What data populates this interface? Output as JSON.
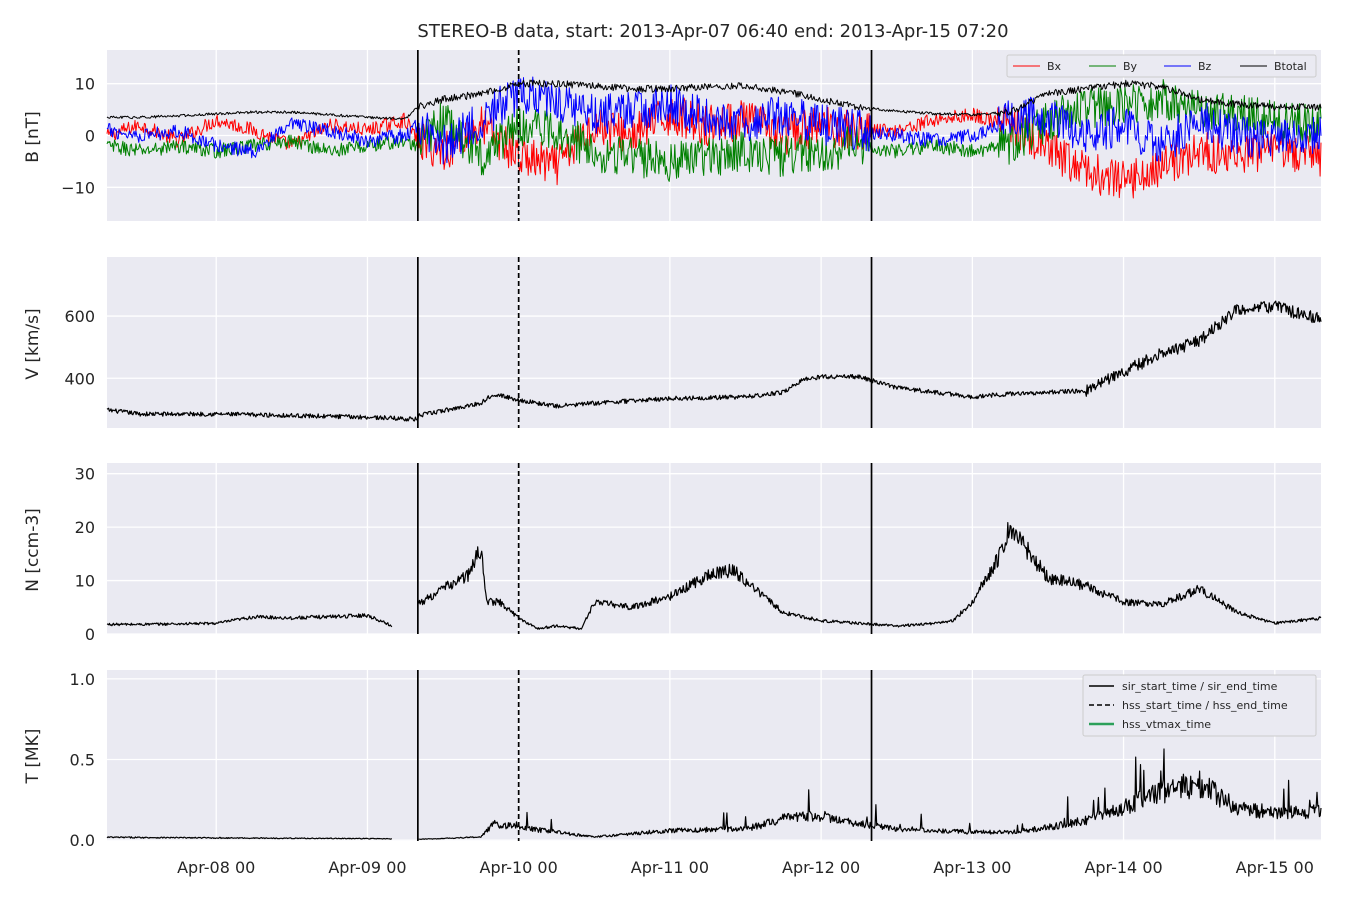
{
  "title": "STEREO-B data, start: 2013-Apr-07 06:40  end: 2013-Apr-15 07:20",
  "colors": {
    "plot_bg": "#EAEAF2",
    "grid": "#FFFFFF",
    "bx": "#FF0000",
    "by": "#008000",
    "bz": "#0000FF",
    "btotal": "#000000",
    "hss_vtmax": "#2CA05A"
  },
  "chart_data": [
    {
      "type": "line",
      "ylabel": "B [nT]",
      "xlim": [
        "2013-04-07 06:40",
        "2013-04-15 07:20"
      ],
      "ylim": [
        -16.5,
        16.5
      ],
      "yticks": [
        -10,
        0,
        10
      ],
      "ytick_labels": [
        "−10",
        "0",
        "10"
      ],
      "grid": true,
      "legend": "top-right",
      "series": [
        {
          "name": "Bx",
          "color": "#FF0000",
          "x": [
            "04-07 06:40",
            "04-07 12:00",
            "04-07 18:00",
            "04-08 00:00",
            "04-08 06:00",
            "04-08 12:00",
            "04-08 18:00",
            "04-09 00:00",
            "04-09 06:00",
            "04-09 08:00",
            "04-09 12:00",
            "04-09 18:00",
            "04-10 00:00",
            "04-10 06:00",
            "04-10 12:00",
            "04-10 18:00",
            "04-11 00:00",
            "04-11 06:00",
            "04-11 12:00",
            "04-11 18:00",
            "04-12 00:00",
            "04-12 06:00",
            "04-12 12:00",
            "04-12 18:00",
            "04-13 00:00",
            "04-13 06:00",
            "04-13 12:00",
            "04-13 18:00",
            "04-14 00:00",
            "04-14 06:00",
            "04-14 12:00",
            "04-14 18:00",
            "04-15 00:00",
            "04-15 07:20"
          ],
          "y": [
            0,
            2,
            -1,
            3,
            1,
            -2,
            2,
            1,
            3,
            -1,
            -3,
            2,
            -4,
            -6,
            2,
            0,
            4,
            2,
            3,
            0,
            2,
            1,
            1,
            3,
            4,
            2,
            -3,
            -7,
            -9,
            -6,
            -3,
            -4,
            -3,
            -4
          ]
        },
        {
          "name": "By",
          "color": "#008000",
          "x": [
            "04-07 06:40",
            "04-07 12:00",
            "04-07 18:00",
            "04-08 00:00",
            "04-08 06:00",
            "04-08 12:00",
            "04-08 18:00",
            "04-09 00:00",
            "04-09 06:00",
            "04-09 08:00",
            "04-09 12:00",
            "04-09 18:00",
            "04-10 00:00",
            "04-10 06:00",
            "04-10 12:00",
            "04-10 18:00",
            "04-11 00:00",
            "04-11 06:00",
            "04-11 12:00",
            "04-11 18:00",
            "04-12 00:00",
            "04-12 06:00",
            "04-12 12:00",
            "04-12 18:00",
            "04-13 00:00",
            "04-13 06:00",
            "04-13 12:00",
            "04-13 18:00",
            "04-14 00:00",
            "04-14 06:00",
            "04-14 12:00",
            "04-14 18:00",
            "04-15 00:00",
            "04-15 07:20"
          ],
          "y": [
            -2,
            -3,
            -2,
            -3,
            -2,
            -1,
            -3,
            -2,
            -1,
            -2,
            3,
            -4,
            2,
            1,
            -3,
            -4,
            -5,
            -4,
            -3,
            -4,
            -3,
            -2,
            -3,
            -2,
            -3,
            -2,
            3,
            5,
            6,
            7,
            5,
            4,
            3,
            2
          ]
        },
        {
          "name": "Bz",
          "color": "#0000FF",
          "x": [
            "04-07 06:40",
            "04-07 12:00",
            "04-07 18:00",
            "04-08 00:00",
            "04-08 06:00",
            "04-08 12:00",
            "04-08 18:00",
            "04-09 00:00",
            "04-09 06:00",
            "04-09 08:00",
            "04-09 12:00",
            "04-09 18:00",
            "04-10 00:00",
            "04-10 06:00",
            "04-10 12:00",
            "04-10 18:00",
            "04-11 00:00",
            "04-11 06:00",
            "04-11 12:00",
            "04-11 18:00",
            "04-12 00:00",
            "04-12 06:00",
            "04-12 12:00",
            "04-12 18:00",
            "04-13 00:00",
            "04-13 06:00",
            "04-13 12:00",
            "04-13 18:00",
            "04-14 00:00",
            "04-14 06:00",
            "04-14 12:00",
            "04-14 18:00",
            "04-15 00:00",
            "04-15 07:20"
          ],
          "y": [
            1,
            0,
            1,
            -2,
            -3,
            2,
            1,
            -1,
            0,
            2,
            -2,
            3,
            8,
            7,
            4,
            5,
            6,
            3,
            2,
            4,
            2,
            1,
            0,
            -1,
            0,
            3,
            4,
            0,
            2,
            -2,
            3,
            0,
            -1,
            0
          ]
        },
        {
          "name": "Btotal",
          "color": "#000000",
          "x": [
            "04-07 06:40",
            "04-07 12:00",
            "04-07 18:00",
            "04-08 00:00",
            "04-08 06:00",
            "04-08 12:00",
            "04-08 18:00",
            "04-09 00:00",
            "04-09 06:00",
            "04-09 08:00",
            "04-09 12:00",
            "04-09 18:00",
            "04-10 00:00",
            "04-10 06:00",
            "04-10 12:00",
            "04-10 18:00",
            "04-11 00:00",
            "04-11 06:00",
            "04-11 12:00",
            "04-11 18:00",
            "04-12 00:00",
            "04-12 06:00",
            "04-12 12:00",
            "04-12 18:00",
            "04-13 00:00",
            "04-13 06:00",
            "04-13 12:00",
            "04-13 18:00",
            "04-14 00:00",
            "04-14 06:00",
            "04-14 12:00",
            "04-14 18:00",
            "04-15 00:00",
            "04-15 07:20"
          ],
          "y": [
            3.5,
            3.5,
            3.8,
            4.2,
            4.5,
            4.5,
            4.0,
            3.5,
            3.2,
            5.5,
            7,
            8,
            10,
            10,
            9.5,
            9,
            9,
            9.5,
            9.5,
            8.5,
            7,
            5.5,
            4.7,
            4.2,
            4,
            4.5,
            8,
            9,
            10,
            9.5,
            7,
            6,
            5.5,
            5.5
          ]
        }
      ]
    },
    {
      "type": "line",
      "ylabel": "V [km/s]",
      "xlim": [
        "2013-04-07 06:40",
        "2013-04-15 07:20"
      ],
      "ylim": [
        240,
        790
      ],
      "yticks": [
        400,
        600
      ],
      "ytick_labels": [
        "400",
        "600"
      ],
      "grid": true,
      "series": [
        {
          "color": "#000000",
          "x": [
            "04-07 06:40",
            "04-07 12:00",
            "04-08 00:00",
            "04-08 12:00",
            "04-09 00:00",
            "04-09 08:00",
            "04-09 08:10",
            "04-09 18:00",
            "04-09 20:00",
            "04-10 00:00",
            "04-10 06:00",
            "04-10 12:00",
            "04-11 00:00",
            "04-11 12:00",
            "04-11 18:00",
            "04-11 21:00",
            "04-12 00:00",
            "04-12 06:00",
            "04-12 12:00",
            "04-13 00:00",
            "04-13 06:00",
            "04-13 12:00",
            "04-13 18:00",
            "04-14 00:00",
            "04-14 06:00",
            "04-14 12:00",
            "04-14 18:00",
            "04-15 00:00",
            "04-15 07:20"
          ],
          "y": [
            298,
            285,
            285,
            280,
            275,
            268,
            280,
            320,
            350,
            330,
            310,
            320,
            335,
            340,
            355,
            395,
            405,
            405,
            370,
            340,
            350,
            355,
            360,
            420,
            480,
            520,
            620,
            630,
            590
          ]
        }
      ]
    },
    {
      "type": "line",
      "ylabel": "N [ccm-3]",
      "xlim": [
        "2013-04-07 06:40",
        "2013-04-15 07:20"
      ],
      "ylim": [
        0,
        32
      ],
      "yticks": [
        0,
        10,
        20,
        30
      ],
      "ytick_labels": [
        "0",
        "10",
        "20",
        "30"
      ],
      "grid": true,
      "data_gap": [
        "2013-04-09 04:00",
        "2013-04-09 08:00"
      ],
      "series": [
        {
          "color": "#000000",
          "x": [
            "04-07 06:40",
            "04-07 12:00",
            "04-08 00:00",
            "04-08 06:00",
            "04-08 12:00",
            "04-09 00:00",
            "04-09 04:00",
            "04-09 08:00",
            "04-09 12:00",
            "04-09 16:00",
            "04-09 18:00",
            "04-09 19:00",
            "04-09 21:00",
            "04-10 00:00",
            "04-10 03:00",
            "04-10 06:00",
            "04-10 10:00",
            "04-10 12:00",
            "04-10 18:00",
            "04-11 00:00",
            "04-11 06:00",
            "04-11 10:00",
            "04-11 14:00",
            "04-11 18:00",
            "04-12 00:00",
            "04-12 06:00",
            "04-12 12:00",
            "04-12 18:00",
            "04-12 21:00",
            "04-13 00:00",
            "04-13 04:00",
            "04-13 06:00",
            "04-13 12:00",
            "04-13 18:00",
            "04-14 00:00",
            "04-14 06:00",
            "04-14 12:00",
            "04-14 18:00",
            "04-15 00:00",
            "04-15 07:20"
          ],
          "y": [
            1.8,
            1.8,
            2.0,
            3.2,
            3.0,
            3.5,
            1.5,
            5.5,
            8.5,
            11,
            16,
            6,
            6,
            3,
            1,
            1.5,
            1,
            6,
            5,
            7,
            11,
            12,
            8,
            4,
            2.5,
            2,
            1.5,
            2,
            2.5,
            6,
            14,
            20,
            10.5,
            9,
            6,
            5.5,
            8.5,
            4,
            2,
            3
          ]
        }
      ]
    },
    {
      "type": "line",
      "ylabel": "T [MK]",
      "xlabel": "",
      "xlim": [
        "2013-04-07 06:40",
        "2013-04-15 07:20"
      ],
      "ylim": [
        -0.005,
        1.055
      ],
      "yticks": [
        0.0,
        0.5,
        1.0
      ],
      "ytick_labels": [
        "0.0",
        "0.5",
        "1.0"
      ],
      "xticks": [
        "2013-04-08 00:00",
        "2013-04-09 00:00",
        "2013-04-10 00:00",
        "2013-04-11 00:00",
        "2013-04-12 00:00",
        "2013-04-13 00:00",
        "2013-04-14 00:00",
        "2013-04-15 00:00"
      ],
      "xtick_labels": [
        "Apr-08 00",
        "Apr-09 00",
        "Apr-10 00",
        "Apr-11 00",
        "Apr-12 00",
        "Apr-13 00",
        "Apr-14 00",
        "Apr-15 00"
      ],
      "grid": true,
      "legend": "top-right",
      "data_gap": [
        "2013-04-09 04:00",
        "2013-04-09 08:00"
      ],
      "series": [
        {
          "color": "#000000",
          "x": [
            "04-07 06:40",
            "04-08 00:00",
            "04-08 12:00",
            "04-09 00:00",
            "04-09 04:00",
            "04-09 08:00",
            "04-09 18:00",
            "04-09 20:00",
            "04-10 00:00",
            "04-10 06:00",
            "04-10 12:00",
            "04-11 00:00",
            "04-11 12:00",
            "04-11 18:00",
            "04-12 00:00",
            "04-12 06:00",
            "04-12 12:00",
            "04-13 00:00",
            "04-13 06:00",
            "04-13 12:00",
            "04-13 18:00",
            "04-14 00:00",
            "04-14 06:00",
            "04-14 12:00",
            "04-14 18:00",
            "04-15 00:00",
            "04-15 07:20"
          ],
          "y": [
            0.018,
            0.014,
            0.012,
            0.01,
            0.008,
            0.005,
            0.02,
            0.1,
            0.08,
            0.05,
            0.02,
            0.06,
            0.07,
            0.13,
            0.15,
            0.1,
            0.07,
            0.05,
            0.05,
            0.08,
            0.12,
            0.2,
            0.3,
            0.35,
            0.2,
            0.17,
            0.18
          ]
        }
      ]
    }
  ],
  "event_lines": [
    {
      "time": "2013-04-09 08:00",
      "style": "solid"
    },
    {
      "time": "2013-04-10 00:00",
      "style": "dashed"
    },
    {
      "time": "2013-04-12 08:00",
      "style": "solid"
    }
  ],
  "legend_B": [
    "Bx",
    "By",
    "Bz",
    "Btotal"
  ],
  "legend_T": [
    {
      "label": "sir_start_time / sir_end_time",
      "style": "solid",
      "color": "#000000"
    },
    {
      "label": "hss_start_time / hss_end_time",
      "style": "dashed",
      "color": "#000000"
    },
    {
      "label": "hss_vtmax_time",
      "style": "solid",
      "color": "#2CA05A"
    }
  ]
}
